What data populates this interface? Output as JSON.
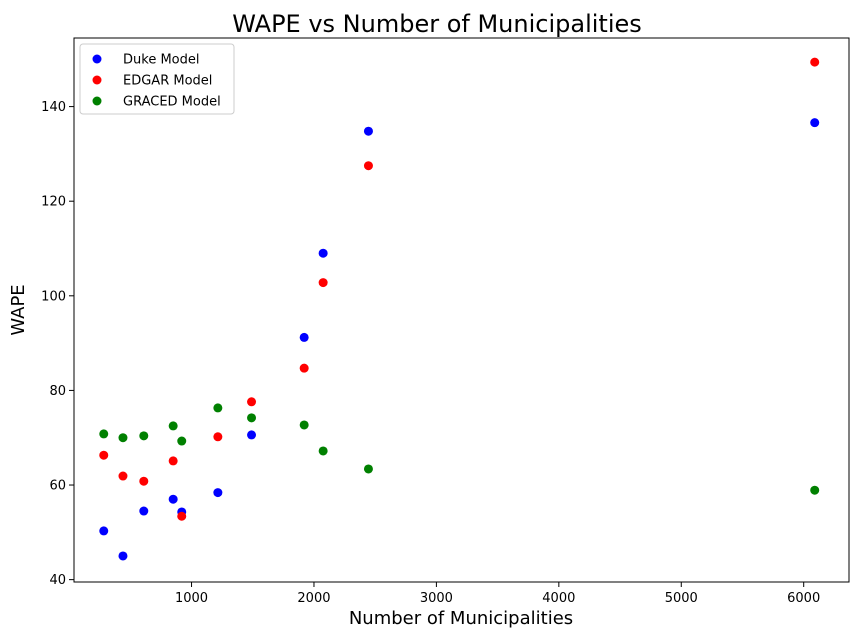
{
  "chart_data": {
    "type": "scatter",
    "title": "WAPE vs Number of Municipalities",
    "xlabel": "Number of Municipalities",
    "ylabel": "WAPE",
    "xlim": [
      40,
      6370
    ],
    "ylim": [
      39.5,
      154.5
    ],
    "xticks": [
      1000,
      2000,
      3000,
      4000,
      5000,
      6000
    ],
    "yticks": [
      40,
      60,
      80,
      100,
      120,
      140
    ],
    "grid": false,
    "legend_position": "top-left",
    "series": [
      {
        "name": "Duke Model",
        "color": "#0000ff",
        "x": [
          283,
          440,
          610,
          850,
          920,
          1215,
          1490,
          1920,
          2075,
          2445,
          6090
        ],
        "y": [
          50.3,
          45.0,
          54.5,
          57.0,
          54.3,
          58.4,
          70.6,
          91.2,
          109.0,
          134.8,
          136.6
        ]
      },
      {
        "name": "EDGAR Model",
        "color": "#ff0000",
        "x": [
          283,
          440,
          610,
          850,
          920,
          1215,
          1490,
          1920,
          2075,
          2445,
          6090
        ],
        "y": [
          66.3,
          61.9,
          60.8,
          65.1,
          53.4,
          70.2,
          77.6,
          84.7,
          102.8,
          127.5,
          149.4
        ]
      },
      {
        "name": "GRACED Model",
        "color": "#008000",
        "x": [
          283,
          440,
          610,
          850,
          920,
          1215,
          1490,
          1920,
          2075,
          2445,
          6090
        ],
        "y": [
          70.8,
          70.0,
          70.4,
          72.5,
          69.3,
          76.3,
          74.2,
          72.7,
          67.2,
          63.4,
          58.9
        ]
      }
    ]
  }
}
